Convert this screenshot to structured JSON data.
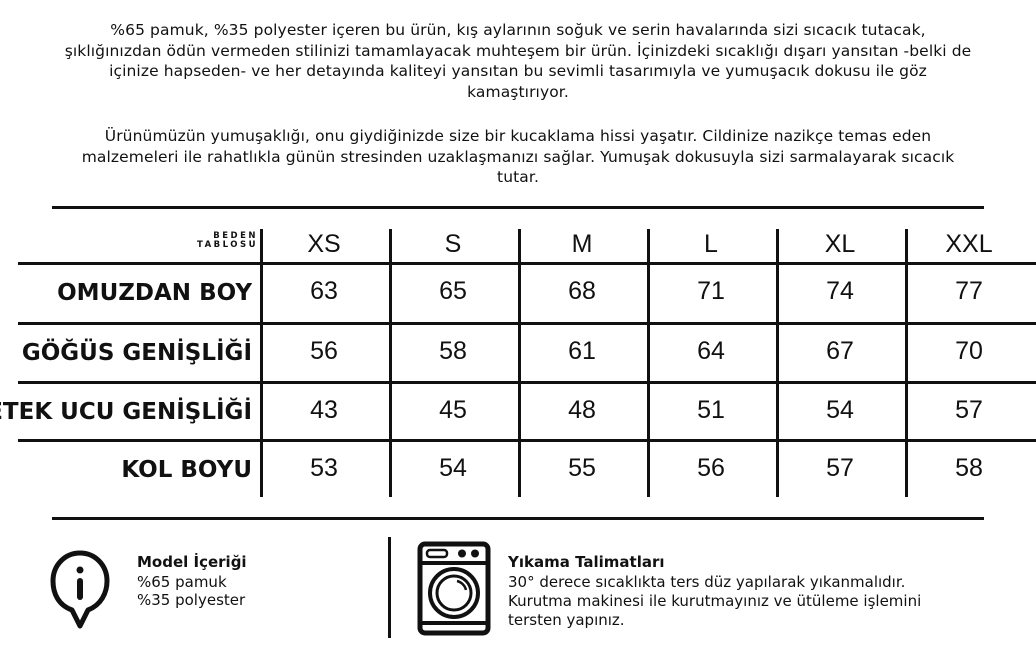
{
  "description": {
    "p1": "%65 pamuk, %35 polyester içeren bu ürün, kış aylarının soğuk ve serin havalarında sizi sıcacık tutacak, şıklığınızdan ödün vermeden stilinizi tamamlayacak muhteşem bir ürün. İçinizdeki sıcaklığı dışarı yansıtan -belki de içinize hapseden- ve her detayında kaliteyi yansıtan bu sevimli tasarımıyla ve yumuşacık dokusu ile göz kamaştırıyor.",
    "p2": "Ürünümüzün yumuşaklığı, onu giydiğinizde size bir kucaklama hissi yaşatır. Cildinize nazikçe temas eden malzemeleri ile rahatlıkla günün stresinden uzaklaşmanızı sağlar. Yumuşak dokusuyla sizi sarmalayarak sıcacık tutar."
  },
  "size_table": {
    "corner_line1": "BEDEN",
    "corner_line2": "TABLOSU",
    "sizes": [
      "XS",
      "S",
      "M",
      "L",
      "XL",
      "XXL"
    ],
    "rows": [
      {
        "label": "OMUZDAN BOY",
        "values": [
          "63",
          "65",
          "68",
          "71",
          "74",
          "77"
        ]
      },
      {
        "label": "GÖĞÜS GENİŞLİĞİ",
        "values": [
          "56",
          "58",
          "61",
          "64",
          "67",
          "70"
        ]
      },
      {
        "label": "ETEK UCU GENİŞLİĞİ",
        "values": [
          "43",
          "45",
          "48",
          "51",
          "54",
          "57"
        ]
      },
      {
        "label": "KOL BOYU",
        "values": [
          "53",
          "54",
          "55",
          "56",
          "57",
          "58"
        ]
      }
    ]
  },
  "model": {
    "icon": "info-icon",
    "title": "Model İçeriği",
    "line1": "%65 pamuk",
    "line2": "%35 polyester"
  },
  "washing": {
    "icon": "washing-machine-icon",
    "title": "Yıkama Talimatları",
    "text": "30° derece sıcaklıkta ters düz yapılarak yıkanmalıdır. Kurutma makinesi ile kurutmayınız ve ütüleme işlemini tersten yapınız."
  }
}
